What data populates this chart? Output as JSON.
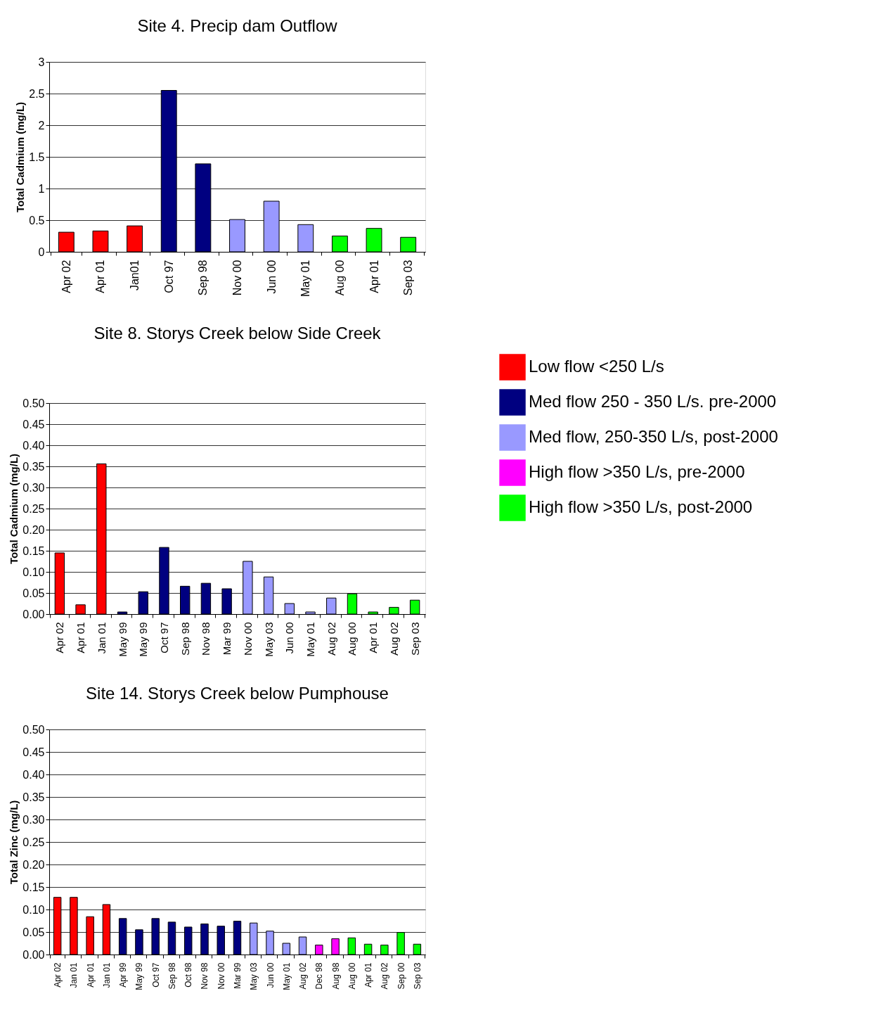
{
  "chart_data": [
    {
      "type": "bar",
      "title": "Site 4.  Precip dam Outflow",
      "ylabel": "Total Cadmium (mg/L)",
      "categories": [
        "Apr 02",
        "Apr 01",
        "Jan01",
        "Oct 97",
        "Sep 98",
        "Nov 00",
        "Jun 00",
        "May 01",
        "Aug 00",
        "Apr 01",
        "Sep 03"
      ],
      "series": [
        {
          "color": "#ff0000",
          "values": [
            0.31,
            0.33,
            0.41,
            null,
            null,
            null,
            null,
            null,
            null,
            null,
            null
          ]
        },
        {
          "color": "#000080",
          "values": [
            null,
            null,
            null,
            2.55,
            1.39,
            null,
            null,
            null,
            null,
            null,
            null
          ]
        },
        {
          "color": "#9999ff",
          "values": [
            null,
            null,
            null,
            null,
            null,
            0.51,
            0.8,
            0.43,
            null,
            null,
            null
          ]
        },
        {
          "color": "#ff00ff",
          "values": [
            null,
            null,
            null,
            null,
            null,
            null,
            null,
            null,
            null,
            null,
            null
          ]
        },
        {
          "color": "#00ff00",
          "values": [
            null,
            null,
            null,
            null,
            null,
            null,
            null,
            null,
            0.25,
            0.37,
            0.23
          ]
        }
      ],
      "ylim": [
        0,
        3
      ],
      "yticks": [
        0,
        0.5,
        1,
        1.5,
        2,
        2.5,
        3
      ],
      "grid": "y"
    },
    {
      "type": "bar",
      "title": "Site 8. Storys Creek below Side Creek",
      "ylabel": "Total Cadmium (mg/L)",
      "categories": [
        "Apr 02",
        "Apr 01",
        "Jan 01",
        "May 99",
        "May 99",
        "Oct 97",
        "Sep 98",
        "Nov 98",
        "Mar 99",
        "Nov 00",
        "May 03",
        "Jun 00",
        "May 01",
        "Aug 02",
        "Aug 00",
        "Apr 01",
        "Aug 02",
        "Sep 03"
      ],
      "series": [
        {
          "name": "Low flow <250 L/s",
          "color": "#ff0000",
          "values": [
            0.145,
            0.022,
            0.356,
            null,
            null,
            null,
            null,
            null,
            null,
            null,
            null,
            null,
            null,
            null,
            null,
            null,
            null,
            null
          ]
        },
        {
          "name": "Med flow 250 - 350 L/s. pre-2000",
          "color": "#000080",
          "values": [
            null,
            null,
            null,
            0.005,
            0.053,
            0.158,
            0.066,
            0.073,
            0.06,
            null,
            null,
            null,
            null,
            null,
            null,
            null,
            null,
            null
          ]
        },
        {
          "name": "Med flow, 250-350 L/s, post-2000",
          "color": "#9999ff",
          "values": [
            null,
            null,
            null,
            null,
            null,
            null,
            null,
            null,
            null,
            0.125,
            0.088,
            0.025,
            0.005,
            0.038,
            null,
            null,
            null,
            null
          ]
        },
        {
          "name": "High flow >350 L/s, pre-2000",
          "color": "#ff00ff",
          "values": [
            null,
            null,
            null,
            null,
            null,
            null,
            null,
            null,
            null,
            null,
            null,
            null,
            null,
            null,
            null,
            null,
            null,
            null
          ]
        },
        {
          "name": "High flow >350 L/s, post-2000",
          "color": "#00ff00",
          "values": [
            null,
            null,
            null,
            null,
            null,
            null,
            null,
            null,
            null,
            null,
            null,
            null,
            null,
            null,
            0.048,
            0.005,
            0.016,
            0.033
          ]
        }
      ],
      "ylim": [
        0,
        0.5
      ],
      "yticks": [
        {
          "value": 0,
          "label": "0.00"
        },
        {
          "value": 0.05,
          "label": "0.05"
        },
        {
          "value": 0.1,
          "label": "0.10"
        },
        {
          "value": 0.15,
          "label": "0.15"
        },
        {
          "value": 0.2,
          "label": "0.20"
        },
        {
          "value": 0.25,
          "label": "0.25"
        },
        {
          "value": 0.3,
          "label": "0.30"
        },
        {
          "value": 0.35,
          "label": "0.35"
        },
        {
          "value": 0.4,
          "label": "0.40"
        },
        {
          "value": 0.45,
          "label": "0.45"
        },
        {
          "value": 0.5,
          "label": "0.50"
        }
      ],
      "grid": "y",
      "legend": "right"
    },
    {
      "type": "bar",
      "title": "Site 14. Storys Creek below Pumphouse",
      "ylabel": "Total Zinc (mg/L)",
      "categories": [
        "Apr 02",
        "Jan 01",
        "Apr 01",
        "Jan 01",
        "Apr 99",
        "May 99",
        "Oct 97",
        "Sep 98",
        "Oct 98",
        "Nov 98",
        "Nov 00",
        "Mar 99",
        "May 03",
        "Jun 00",
        "May 01",
        "Aug 02",
        "Dec 98",
        "Aug 98",
        "Aug 00",
        "Apr 01",
        "Aug 02",
        "Sep 00",
        "Sep 03"
      ],
      "series": [
        {
          "color": "#ff0000",
          "values": [
            0.127,
            0.127,
            0.084,
            0.111,
            null,
            null,
            null,
            null,
            null,
            null,
            null,
            null,
            null,
            null,
            null,
            null,
            null,
            null,
            null,
            null,
            null,
            null,
            null
          ]
        },
        {
          "color": "#000080",
          "values": [
            null,
            null,
            null,
            null,
            0.08,
            0.055,
            0.08,
            0.072,
            0.061,
            0.068,
            0.063,
            0.074,
            null,
            null,
            null,
            null,
            null,
            null,
            null,
            null,
            null,
            null,
            null
          ]
        },
        {
          "color": "#9999ff",
          "values": [
            null,
            null,
            null,
            null,
            null,
            null,
            null,
            null,
            null,
            null,
            null,
            null,
            0.07,
            0.052,
            0.025,
            0.039,
            null,
            null,
            null,
            null,
            null,
            null,
            null
          ]
        },
        {
          "color": "#ff00ff",
          "values": [
            null,
            null,
            null,
            null,
            null,
            null,
            null,
            null,
            null,
            null,
            null,
            null,
            null,
            null,
            null,
            null,
            0.021,
            0.035,
            null,
            null,
            null,
            null,
            null
          ]
        },
        {
          "color": "#00ff00",
          "values": [
            null,
            null,
            null,
            null,
            null,
            null,
            null,
            null,
            null,
            null,
            null,
            null,
            null,
            null,
            null,
            null,
            null,
            null,
            0.037,
            0.023,
            0.021,
            0.049,
            0.023
          ]
        }
      ],
      "ylim": [
        0,
        0.5
      ],
      "yticks": [
        {
          "value": 0,
          "label": "0.00"
        },
        {
          "value": 0.05,
          "label": "0.05"
        },
        {
          "value": 0.1,
          "label": "0.10"
        },
        {
          "value": 0.15,
          "label": "0.15"
        },
        {
          "value": 0.2,
          "label": "0.20"
        },
        {
          "value": 0.25,
          "label": "0.25"
        },
        {
          "value": 0.3,
          "label": "0.30"
        },
        {
          "value": 0.35,
          "label": "0.35"
        },
        {
          "value": 0.4,
          "label": "0.40"
        },
        {
          "value": 0.45,
          "label": "0.45"
        },
        {
          "value": 0.5,
          "label": "0.50"
        }
      ],
      "grid": "y"
    }
  ]
}
